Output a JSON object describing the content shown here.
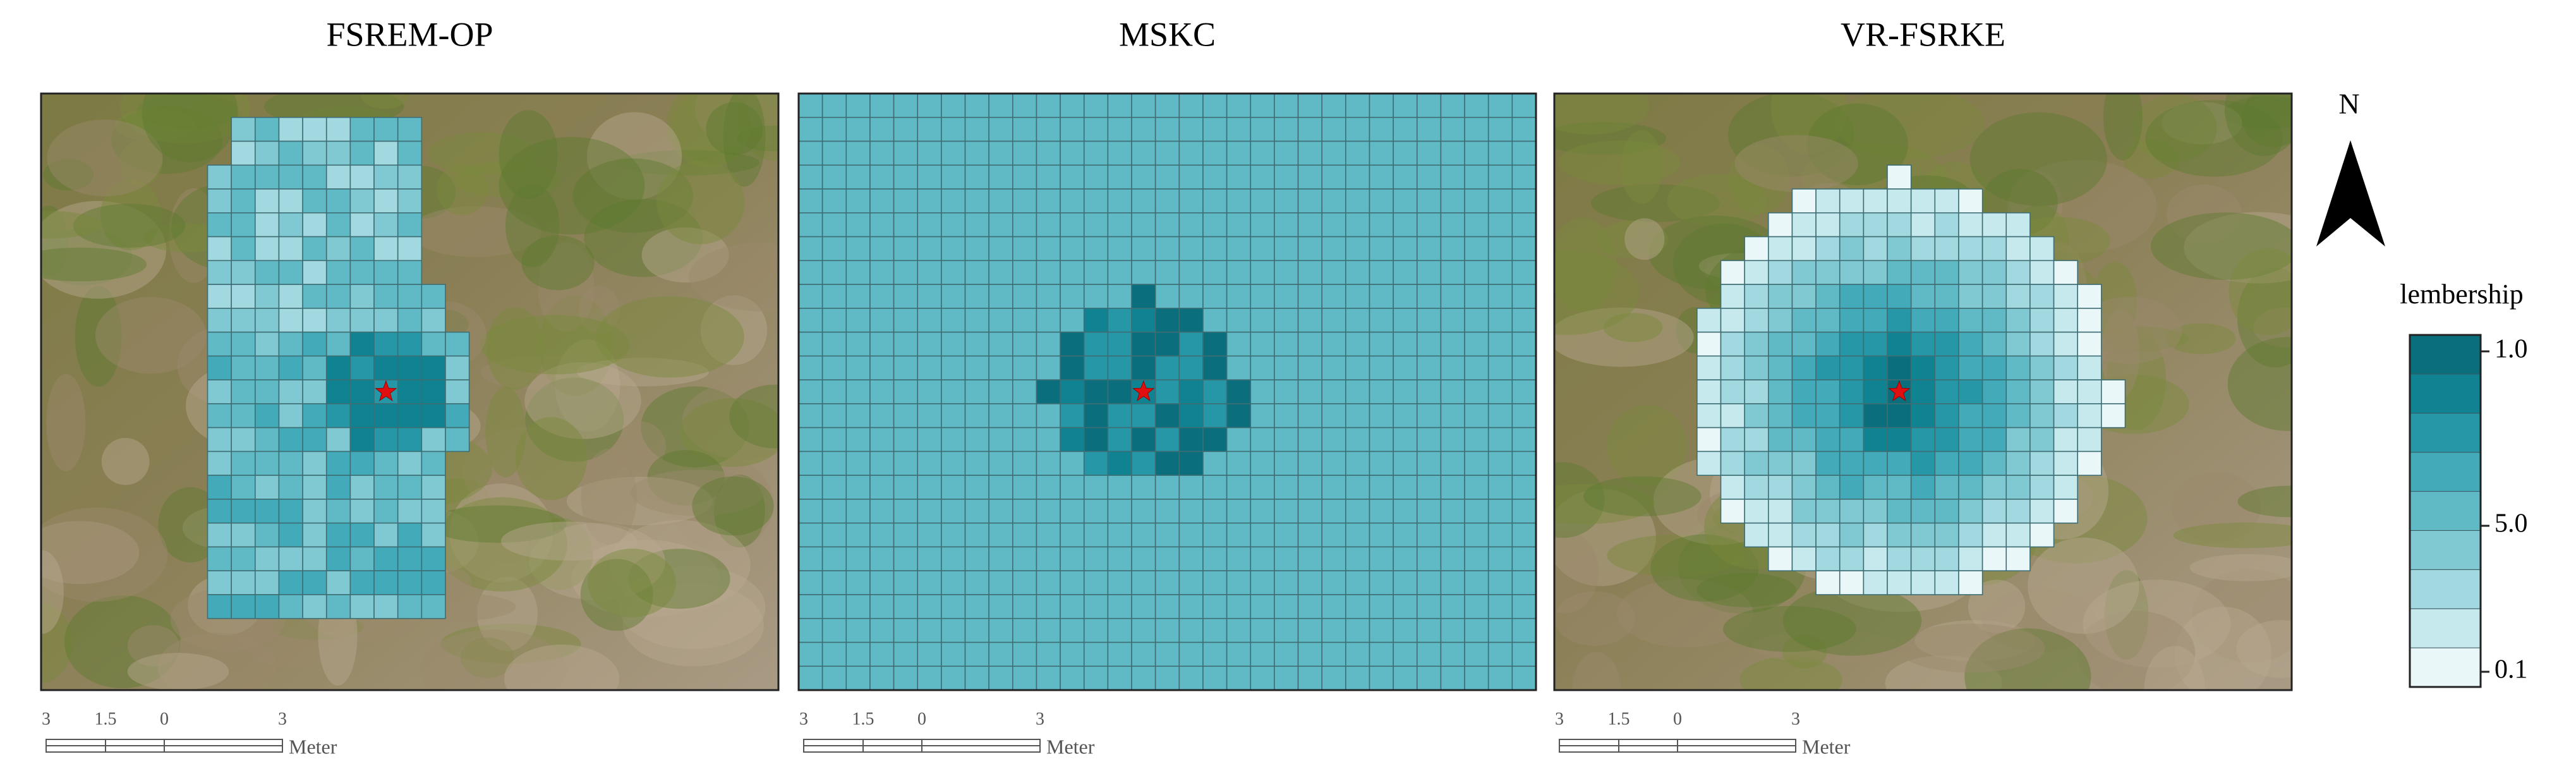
{
  "panels": [
    {
      "title": "FSREM-OP",
      "scale": {
        "labels": [
          "3",
          "1.5",
          "0",
          "3"
        ],
        "unit": "Meter"
      }
    },
    {
      "title": "MSKC",
      "scale": {
        "labels": [
          "3",
          "1.5",
          "0",
          "3"
        ],
        "unit": "Meter"
      }
    },
    {
      "title": "VR-FSRKE",
      "scale": {
        "labels": [
          "3",
          "1.5",
          "0",
          "3"
        ],
        "unit": "Meter"
      }
    }
  ],
  "north": "N",
  "legend": {
    "title": "lembership",
    "labels": [
      "1.0",
      "5.0",
      "0.1"
    ]
  }
}
